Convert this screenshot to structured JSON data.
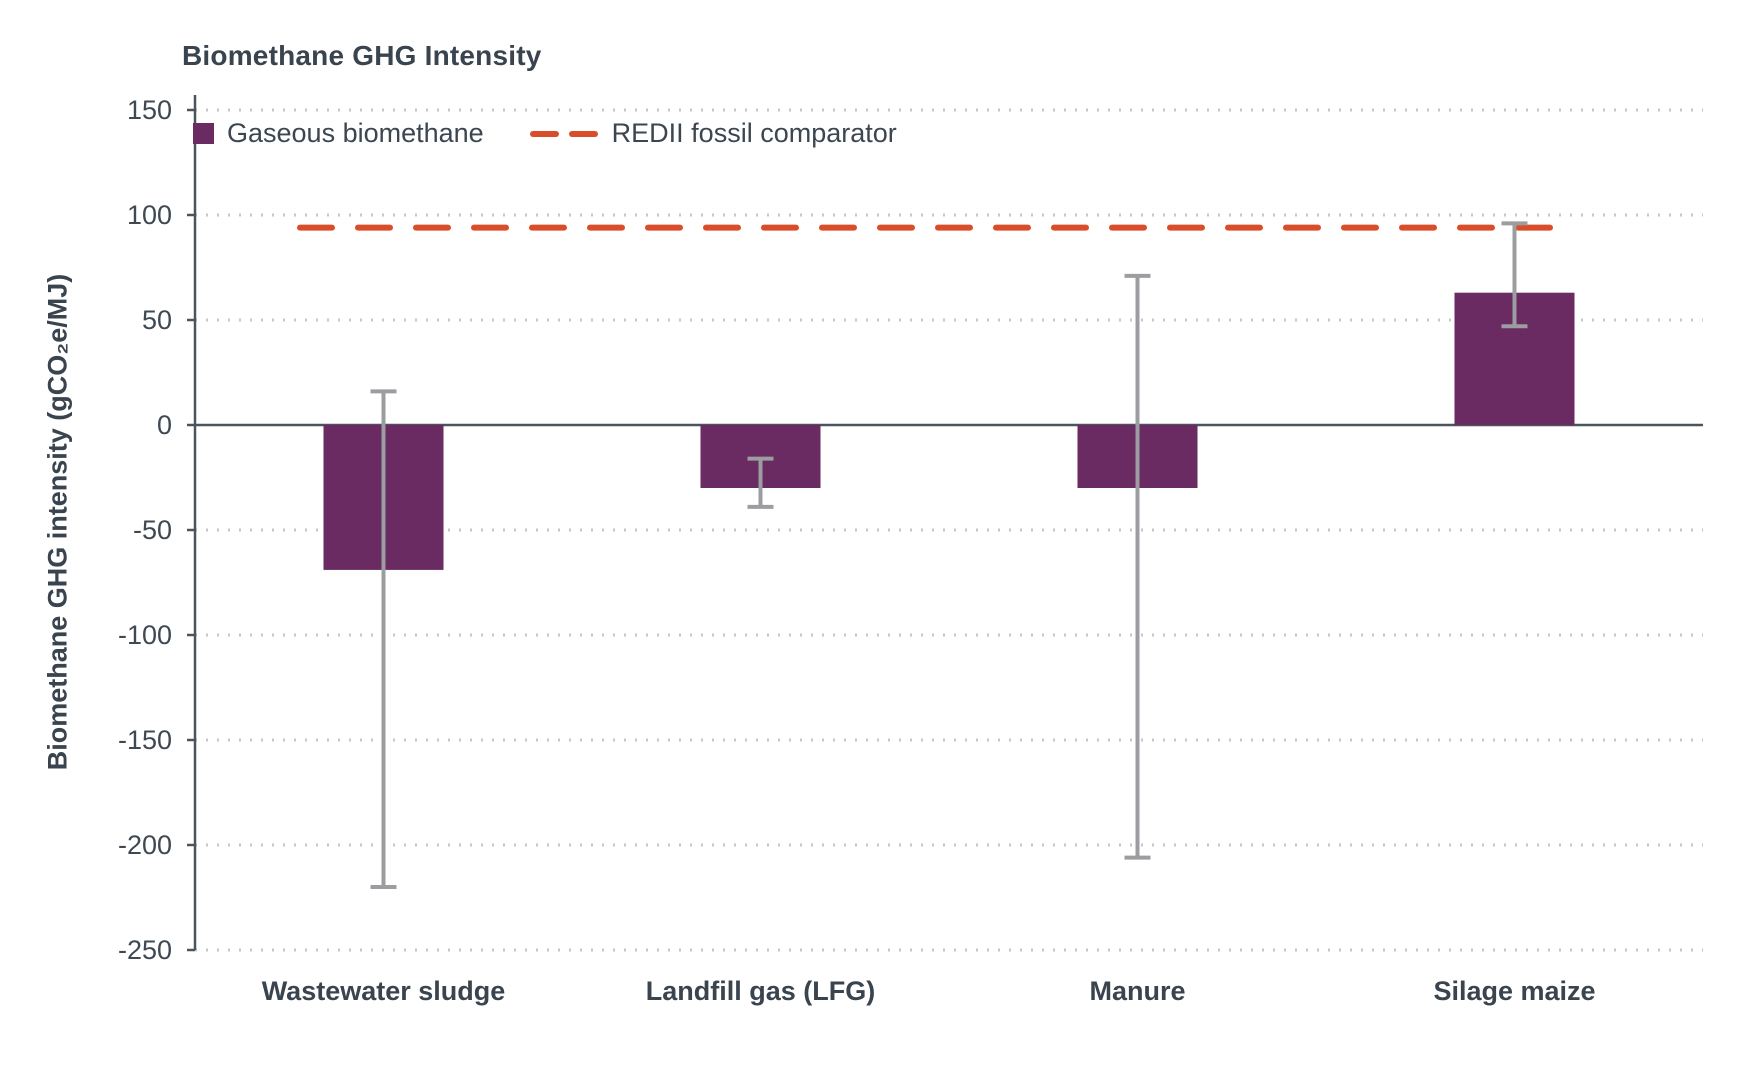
{
  "title": "Biomethane GHG Intensity",
  "y_axis_title": "Biomethane GHG intensity (gCO₂e/MJ)",
  "legend": {
    "series_label": "Gaseous biomethane",
    "reference_label": "REDII fossil comparator"
  },
  "colors": {
    "bar": "#6A2A62",
    "reference": "#D94E2A",
    "text": "#3C4650",
    "axis": "#4A545E",
    "grid": "#C6C8CA",
    "error": "#9B9DA0"
  },
  "chart_data": {
    "type": "bar",
    "title": "Biomethane GHG Intensity",
    "xlabel": "",
    "ylabel": "Biomethane GHG intensity (gCO₂e/MJ)",
    "categories": [
      "Wastewater sludge",
      "Landfill gas (LFG)",
      "Manure",
      "Silage maize"
    ],
    "series": [
      {
        "name": "Gaseous biomethane",
        "values": [
          -69,
          -30,
          -30,
          63
        ],
        "error_low": [
          -220,
          -39,
          -206,
          47
        ],
        "error_high": [
          16,
          -16,
          71,
          96
        ]
      }
    ],
    "reference_line": {
      "name": "REDII fossil comparator",
      "value": 94,
      "style": "dashed"
    },
    "ylim": [
      -250,
      150
    ],
    "yticks": [
      150,
      100,
      50,
      0,
      -50,
      -100,
      -150,
      -200,
      -250
    ],
    "grid": "dotted-horizontal",
    "legend_position": "top-left-inside"
  }
}
